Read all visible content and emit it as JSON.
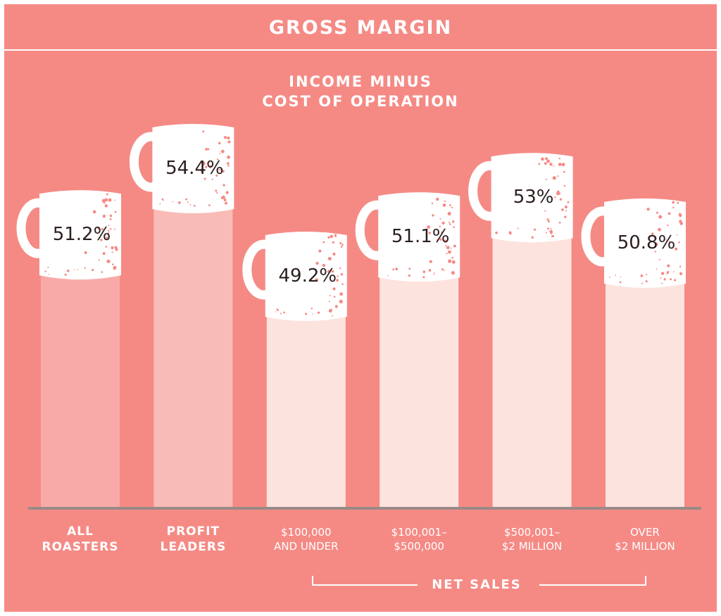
{
  "header": {
    "title": "GROSS MARGIN"
  },
  "subtitle": {
    "line1": "INCOME MINUS",
    "line2": "COST OF OPERATION"
  },
  "chart_data": {
    "type": "bar",
    "title": "GROSS MARGIN",
    "subtitle": "INCOME MINUS COST OF OPERATION",
    "ylim": [
      0,
      60
    ],
    "grid": false,
    "categories": [
      [
        "ALL",
        "ROASTERS"
      ],
      [
        "PROFIT",
        "LEADERS"
      ],
      [
        "$100,000",
        "AND UNDER"
      ],
      [
        "$100,001–",
        "$500,000"
      ],
      [
        "$500,001–",
        "$2 MILLION"
      ],
      [
        "OVER",
        "$2 MILLION"
      ]
    ],
    "values": [
      51.2,
      54.4,
      49.2,
      51.1,
      53,
      50.8
    ],
    "value_labels": [
      "51.2%",
      "54.4%",
      "49.2%",
      "51.1%",
      "53%",
      "50.8%"
    ],
    "group_label": "NET SALES"
  },
  "colors": {
    "background": "#f58a85",
    "bar_all": "#f8aaa8",
    "bar_leaders": "#f9bbb6",
    "bar_sales": "#fde3de",
    "mug": "#ffffff",
    "speckle": "#f58a85",
    "axis": "#9a8a88",
    "value_text": "#2b1f1e"
  }
}
